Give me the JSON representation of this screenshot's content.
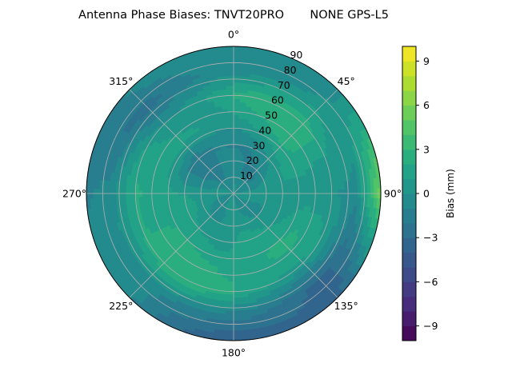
{
  "chart_data": {
    "type": "heatmap",
    "subtype": "polar-filled-contour",
    "title": "Antenna Phase Biases: TNVT20PRO       NONE GPS-L5",
    "angular_tick_labels": [
      "0°",
      "45°",
      "90°",
      "135°",
      "180°",
      "225°",
      "270°",
      "315°"
    ],
    "radial_tick_labels": [
      "10",
      "20",
      "30",
      "40",
      "50",
      "60",
      "70",
      "80",
      "90"
    ],
    "radial_range": [
      0,
      90
    ],
    "angular_direction": "clockwise",
    "angular_zero": "top",
    "grid": true,
    "colormap": "viridis",
    "colorbar": {
      "label": "Bias (mm)",
      "range": [
        -10,
        10
      ],
      "levels": 20,
      "tick_labels": [
        "−9",
        "−6",
        "−3",
        "0",
        "3",
        "6",
        "9"
      ],
      "tick_values": [
        -9,
        -6,
        -3,
        0,
        3,
        6,
        9
      ]
    },
    "azimuth_deg": [
      0,
      45,
      90,
      135,
      180,
      225,
      270,
      315
    ],
    "radial_deg": [
      0,
      15,
      30,
      45,
      60,
      75,
      90
    ],
    "bias_mm": [
      [
        0,
        -1,
        -1,
        1,
        2,
        -1,
        0
      ],
      [
        0,
        -1,
        0,
        2,
        3,
        1,
        -1
      ],
      [
        0,
        0,
        1,
        1,
        0,
        -1,
        6
      ],
      [
        0,
        0,
        1,
        2,
        1,
        -3,
        -4
      ],
      [
        0,
        0,
        1,
        2,
        2,
        -2,
        -4
      ],
      [
        0,
        0,
        1,
        2,
        3,
        0,
        -1
      ],
      [
        0,
        0,
        1,
        2,
        2,
        -1,
        -1
      ],
      [
        0,
        -1,
        -2,
        1,
        0,
        -2,
        -1
      ]
    ]
  }
}
